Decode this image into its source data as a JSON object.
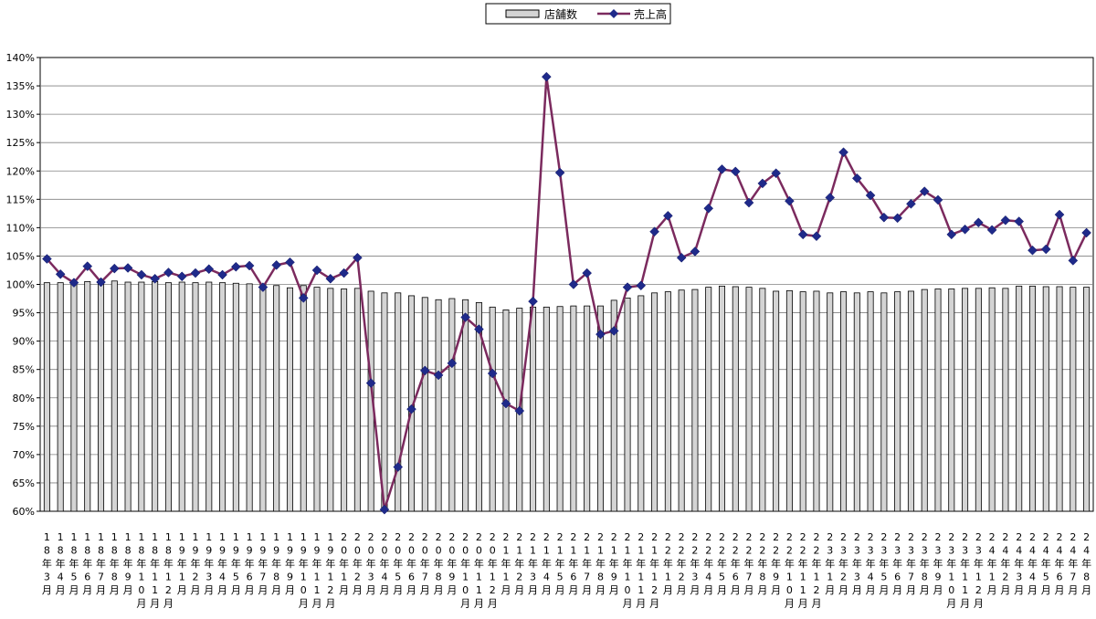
{
  "chart_data": {
    "type": "bar+line",
    "title": "",
    "xlabel": "",
    "ylabel": "",
    "ylim": [
      0.6,
      1.4
    ],
    "y_ticks": [
      "60%",
      "65%",
      "70%",
      "75%",
      "80%",
      "85%",
      "90%",
      "95%",
      "100%",
      "105%",
      "110%",
      "115%",
      "120%",
      "125%",
      "130%",
      "135%",
      "140%"
    ],
    "grid": true,
    "legend_position": "top-center",
    "colors": {
      "bar_fill": "#d4d4d4",
      "bar_stroke": "#000000",
      "line": "#7b2a5e",
      "marker": "#1f2a8a"
    },
    "categories": [
      "18年3月",
      "18年4月",
      "18年5月",
      "18年6月",
      "18年7月",
      "18年8月",
      "18年9月",
      "18年10月",
      "18年11月",
      "18年12月",
      "19年1月",
      "19年2月",
      "19年3月",
      "19年4月",
      "19年5月",
      "19年6月",
      "19年7月",
      "19年8月",
      "19年9月",
      "19年10月",
      "19年11月",
      "19年12月",
      "20年1月",
      "20年2月",
      "20年3月",
      "20年4月",
      "20年5月",
      "20年6月",
      "20年7月",
      "20年8月",
      "20年9月",
      "20年10月",
      "20年11月",
      "20年12月",
      "21年1月",
      "21年2月",
      "21年3月",
      "21年4月",
      "21年5月",
      "21年6月",
      "21年7月",
      "21年8月",
      "21年9月",
      "21年10月",
      "21年11月",
      "21年12月",
      "22年1月",
      "22年2月",
      "22年3月",
      "22年4月",
      "22年5月",
      "22年6月",
      "22年7月",
      "22年8月",
      "22年9月",
      "22年10月",
      "22年11月",
      "22年12月",
      "23年1月",
      "23年2月",
      "23年3月",
      "23年4月",
      "23年5月",
      "23年6月",
      "23年7月",
      "23年8月",
      "23年9月",
      "23年10月",
      "23年11月",
      "23年12月",
      "24年1月",
      "24年2月",
      "24年3月",
      "24年4月",
      "24年5月",
      "24年6月",
      "24年7月",
      "24年8月"
    ],
    "x_tick_labels": [
      [
        "1",
        "8",
        "年",
        "3",
        "月"
      ],
      [
        "1",
        "8",
        "年",
        "4",
        "月"
      ],
      [
        "1",
        "8",
        "年",
        "5",
        "月"
      ],
      [
        "1",
        "8",
        "年",
        "6",
        "月"
      ],
      [
        "1",
        "8",
        "年",
        "7",
        "月"
      ],
      [
        "1",
        "8",
        "年",
        "8",
        "月"
      ],
      [
        "1",
        "8",
        "年",
        "9",
        "月"
      ],
      [
        "1",
        "8",
        "年",
        "1",
        "0",
        "月"
      ],
      [
        "1",
        "8",
        "年",
        "1",
        "1",
        "月"
      ],
      [
        "1",
        "8",
        "年",
        "1",
        "2",
        "月"
      ],
      [
        "1",
        "9",
        "年",
        "1",
        "月"
      ],
      [
        "1",
        "9",
        "年",
        "2",
        "月"
      ],
      [
        "1",
        "9",
        "年",
        "3",
        "月"
      ],
      [
        "1",
        "9",
        "年",
        "4",
        "月"
      ],
      [
        "1",
        "9",
        "年",
        "5",
        "月"
      ],
      [
        "1",
        "9",
        "年",
        "6",
        "月"
      ],
      [
        "1",
        "9",
        "年",
        "7",
        "月"
      ],
      [
        "1",
        "9",
        "年",
        "8",
        "月"
      ],
      [
        "1",
        "9",
        "年",
        "9",
        "月"
      ],
      [
        "1",
        "9",
        "年",
        "1",
        "0",
        "月"
      ],
      [
        "1",
        "9",
        "年",
        "1",
        "1",
        "月"
      ],
      [
        "1",
        "9",
        "年",
        "1",
        "2",
        "月"
      ],
      [
        "2",
        "0",
        "年",
        "1",
        "月"
      ],
      [
        "2",
        "0",
        "年",
        "2",
        "月"
      ],
      [
        "2",
        "0",
        "年",
        "3",
        "月"
      ],
      [
        "2",
        "0",
        "年",
        "4",
        "月"
      ],
      [
        "2",
        "0",
        "年",
        "5",
        "月"
      ],
      [
        "2",
        "0",
        "年",
        "6",
        "月"
      ],
      [
        "2",
        "0",
        "年",
        "7",
        "月"
      ],
      [
        "2",
        "0",
        "年",
        "8",
        "月"
      ],
      [
        "2",
        "0",
        "年",
        "9",
        "月"
      ],
      [
        "2",
        "0",
        "年",
        "1",
        "0",
        "月"
      ],
      [
        "2",
        "0",
        "年",
        "1",
        "1",
        "月"
      ],
      [
        "2",
        "0",
        "年",
        "1",
        "2",
        "月"
      ],
      [
        "2",
        "1",
        "年",
        "1",
        "月"
      ],
      [
        "2",
        "1",
        "年",
        "2",
        "月"
      ],
      [
        "2",
        "1",
        "年",
        "3",
        "月"
      ],
      [
        "2",
        "1",
        "年",
        "4",
        "月"
      ],
      [
        "2",
        "1",
        "年",
        "5",
        "月"
      ],
      [
        "2",
        "1",
        "年",
        "6",
        "月"
      ],
      [
        "2",
        "1",
        "年",
        "7",
        "月"
      ],
      [
        "2",
        "1",
        "年",
        "8",
        "月"
      ],
      [
        "2",
        "1",
        "年",
        "9",
        "月"
      ],
      [
        "2",
        "1",
        "年",
        "1",
        "0",
        "月"
      ],
      [
        "2",
        "1",
        "年",
        "1",
        "1",
        "月"
      ],
      [
        "2",
        "1",
        "年",
        "1",
        "2",
        "月"
      ],
      [
        "2",
        "2",
        "年",
        "1",
        "月"
      ],
      [
        "2",
        "2",
        "年",
        "2",
        "月"
      ],
      [
        "2",
        "2",
        "年",
        "3",
        "月"
      ],
      [
        "2",
        "2",
        "年",
        "4",
        "月"
      ],
      [
        "2",
        "2",
        "年",
        "5",
        "月"
      ],
      [
        "2",
        "2",
        "年",
        "6",
        "月"
      ],
      [
        "2",
        "2",
        "年",
        "7",
        "月"
      ],
      [
        "2",
        "2",
        "年",
        "8",
        "月"
      ],
      [
        "2",
        "2",
        "年",
        "9",
        "月"
      ],
      [
        "2",
        "2",
        "年",
        "1",
        "0",
        "月"
      ],
      [
        "2",
        "2",
        "年",
        "1",
        "1",
        "月"
      ],
      [
        "2",
        "2",
        "年",
        "1",
        "2",
        "月"
      ],
      [
        "2",
        "3",
        "年",
        "1",
        "月"
      ],
      [
        "2",
        "3",
        "年",
        "2",
        "月"
      ],
      [
        "2",
        "3",
        "年",
        "3",
        "月"
      ],
      [
        "2",
        "3",
        "年",
        "4",
        "月"
      ],
      [
        "2",
        "3",
        "年",
        "5",
        "月"
      ],
      [
        "2",
        "3",
        "年",
        "6",
        "月"
      ],
      [
        "2",
        "3",
        "年",
        "7",
        "月"
      ],
      [
        "2",
        "3",
        "年",
        "8",
        "月"
      ],
      [
        "2",
        "3",
        "年",
        "9",
        "月"
      ],
      [
        "2",
        "3",
        "年",
        "1",
        "0",
        "月"
      ],
      [
        "2",
        "3",
        "年",
        "1",
        "1",
        "月"
      ],
      [
        "2",
        "3",
        "年",
        "1",
        "2",
        "月"
      ],
      [
        "2",
        "4",
        "年",
        "1",
        "月"
      ],
      [
        "2",
        "4",
        "年",
        "2",
        "月"
      ],
      [
        "2",
        "4",
        "年",
        "3",
        "月"
      ],
      [
        "2",
        "4",
        "年",
        "4",
        "月"
      ],
      [
        "2",
        "4",
        "年",
        "5",
        "月"
      ],
      [
        "2",
        "4",
        "年",
        "6",
        "月"
      ],
      [
        "2",
        "4",
        "年",
        "7",
        "月"
      ],
      [
        "2",
        "4",
        "年",
        "8",
        "月"
      ]
    ],
    "series": [
      {
        "name": "店舗数",
        "type": "bar",
        "values": [
          1.003,
          1.003,
          1.003,
          1.005,
          1.005,
          1.006,
          1.004,
          1.004,
          1.005,
          1.003,
          1.004,
          1.003,
          1.004,
          1.003,
          1.002,
          1.001,
          1.0,
          0.998,
          0.994,
          0.998,
          0.995,
          0.993,
          0.992,
          0.993,
          0.988,
          0.985,
          0.985,
          0.98,
          0.977,
          0.973,
          0.975,
          0.973,
          0.968,
          0.96,
          0.955,
          0.958,
          0.96,
          0.96,
          0.961,
          0.962,
          0.962,
          0.962,
          0.972,
          0.976,
          0.98,
          0.985,
          0.987,
          0.99,
          0.991,
          0.995,
          0.997,
          0.996,
          0.995,
          0.993,
          0.988,
          0.989,
          0.987,
          0.988,
          0.985,
          0.987,
          0.985,
          0.987,
          0.985,
          0.987,
          0.988,
          0.991,
          0.992,
          0.992,
          0.993,
          0.993,
          0.994,
          0.993,
          0.997,
          0.997,
          0.996,
          0.996,
          0.995,
          0.995
        ]
      },
      {
        "name": "売上高",
        "type": "line",
        "values": [
          1.045,
          1.018,
          1.003,
          1.032,
          1.004,
          1.028,
          1.029,
          1.017,
          1.01,
          1.021,
          1.014,
          1.02,
          1.027,
          1.017,
          1.031,
          1.033,
          0.995,
          1.034,
          1.039,
          0.976,
          1.025,
          1.01,
          1.02,
          1.047,
          0.826,
          0.603,
          0.678,
          0.78,
          0.848,
          0.84,
          0.861,
          0.942,
          0.921,
          0.843,
          0.79,
          0.777,
          0.97,
          1.366,
          1.197,
          1.0,
          1.02,
          0.912,
          0.918,
          0.995,
          0.998,
          1.093,
          1.121,
          1.047,
          1.058,
          1.134,
          1.203,
          1.199,
          1.144,
          1.178,
          1.196,
          1.147,
          1.088,
          1.085,
          1.153,
          1.233,
          1.187,
          1.157,
          1.118,
          1.117,
          1.142,
          1.164,
          1.149,
          1.088,
          1.097,
          1.109,
          1.096,
          1.113,
          1.111,
          1.06,
          1.062,
          1.123,
          1.042,
          1.091
        ]
      }
    ]
  }
}
